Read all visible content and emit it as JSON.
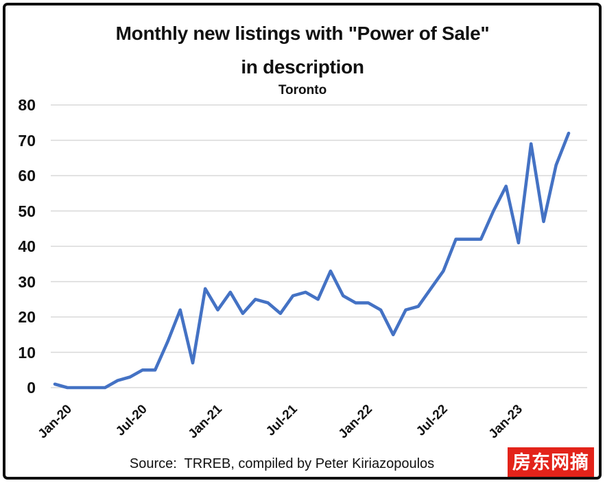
{
  "header": {
    "title_line1": "Monthly new listings with \"Power of Sale\"",
    "title_line2": "in description",
    "subtitle": "Toronto"
  },
  "footer": {
    "source": "Source:  TRREB, compiled by Peter Kiriazopoulos",
    "watermark_badge": "房东网摘"
  },
  "colors": {
    "line": "#4472C4",
    "grid": "#D8D8D8",
    "border": "#0D0D0D",
    "text": "#111111",
    "badge_bg": "#E3231A",
    "badge_text": "#FFFFFF"
  },
  "chart_data": {
    "type": "line",
    "title": "Monthly new listings with \"Power of Sale\" in description",
    "subtitle": "Toronto",
    "source": "Source: TRREB, compiled by Peter Kiriazopoulos",
    "legend": "none",
    "grid": "horizontal",
    "ylim": [
      0,
      80
    ],
    "y_tick_step": 10,
    "x_tick_labels": [
      "Jan-20",
      "Jul-20",
      "Jan-21",
      "Jul-21",
      "Jan-22",
      "Jul-22",
      "Jan-23"
    ],
    "x_tick_indices": [
      0,
      6,
      12,
      18,
      24,
      30,
      36
    ],
    "x": [
      "Jan-20",
      "Feb-20",
      "Mar-20",
      "Apr-20",
      "May-20",
      "Jun-20",
      "Jul-20",
      "Aug-20",
      "Sep-20",
      "Oct-20",
      "Nov-20",
      "Dec-20",
      "Jan-21",
      "Feb-21",
      "Mar-21",
      "Apr-21",
      "May-21",
      "Jun-21",
      "Jul-21",
      "Aug-21",
      "Sep-21",
      "Oct-21",
      "Nov-21",
      "Dec-21",
      "Jan-22",
      "Feb-22",
      "Mar-22",
      "Apr-22",
      "May-22",
      "Jun-22",
      "Jul-22",
      "Aug-22",
      "Sep-22",
      "Oct-22",
      "Nov-22",
      "Dec-22",
      "Jan-23",
      "Feb-23",
      "Mar-23",
      "Apr-23",
      "May-23",
      "Jun-23"
    ],
    "values": [
      1,
      0,
      0,
      0,
      0,
      2,
      3,
      5,
      5,
      13,
      22,
      7,
      28,
      22,
      27,
      21,
      25,
      24,
      21,
      26,
      27,
      25,
      33,
      26,
      24,
      24,
      22,
      15,
      22,
      23,
      28,
      33,
      42,
      42,
      42,
      50,
      57,
      41,
      69,
      47,
      63,
      72
    ]
  }
}
